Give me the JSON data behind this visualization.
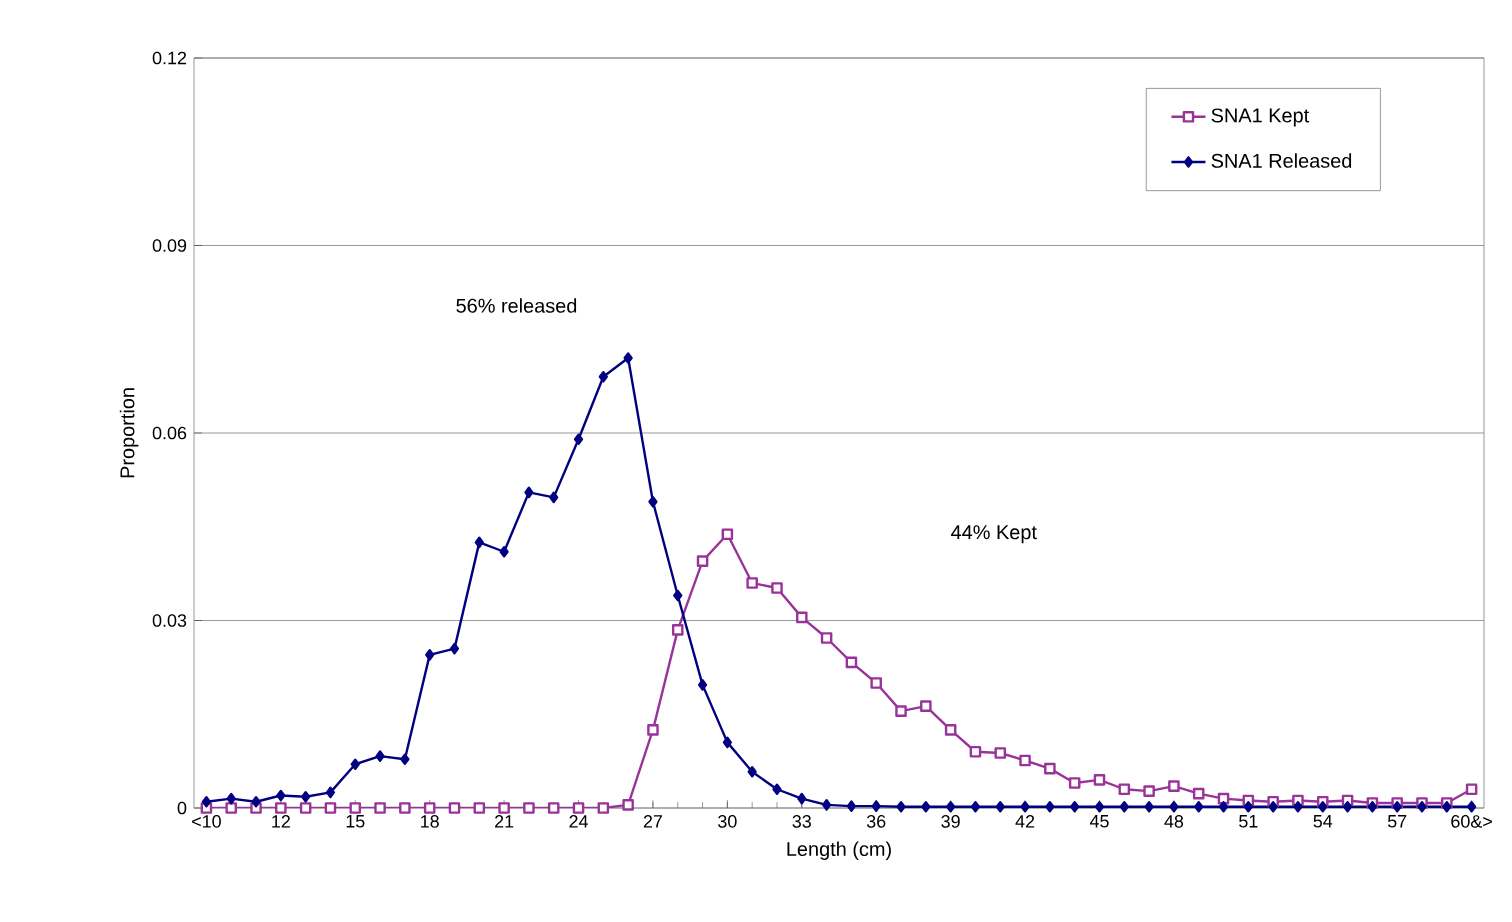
{
  "chart_data": {
    "type": "line",
    "xlabel": "Length (cm)",
    "ylabel": "Proportion",
    "categories": [
      "<10",
      null,
      null,
      "12",
      null,
      null,
      "15",
      null,
      null,
      "18",
      null,
      null,
      "21",
      null,
      null,
      "24",
      null,
      null,
      "27",
      null,
      null,
      "30",
      null,
      null,
      "33",
      null,
      null,
      "36",
      null,
      null,
      "39",
      null,
      null,
      "42",
      null,
      null,
      "45",
      null,
      null,
      "48",
      null,
      null,
      "51",
      null,
      null,
      "54",
      null,
      null,
      "57",
      null,
      null,
      "60&>"
    ],
    "series": [
      {
        "name": "SNA1 Kept",
        "color": "#993399",
        "marker": "square",
        "values": [
          0,
          0,
          0,
          0,
          0,
          0,
          0,
          0,
          0,
          0,
          0,
          0,
          0,
          0,
          0,
          0,
          0,
          0.0005,
          0.0125,
          0.0285,
          0.0395,
          0.0438,
          0.036,
          0.0352,
          0.0305,
          0.0272,
          0.0233,
          0.02,
          0.0155,
          0.0163,
          0.0125,
          0.009,
          0.0088,
          0.0076,
          0.0063,
          0.004,
          0.0045,
          0.003,
          0.0027,
          0.0035,
          0.0023,
          0.0015,
          0.0012,
          0.001,
          0.0012,
          0.001,
          0.0012,
          0.0008,
          0.0008,
          0.0008,
          0.0008,
          0.003
        ]
      },
      {
        "name": "SNA1 Released",
        "color": "#000080",
        "marker": "diamond",
        "values": [
          0.001,
          0.0015,
          0.001,
          0.002,
          0.0018,
          0.0025,
          0.007,
          0.0083,
          0.0078,
          0.0245,
          0.0255,
          0.0425,
          0.041,
          0.0505,
          0.0497,
          0.059,
          0.069,
          0.072,
          0.049,
          0.034,
          0.0197,
          0.0105,
          0.0058,
          0.003,
          0.0015,
          0.0005,
          0.0003,
          0.0003,
          0.0002,
          0.0002,
          0.0002,
          0.0002,
          0.0002,
          0.0002,
          0.0002,
          0.0002,
          0.0002,
          0.0002,
          0.0002,
          0.0002,
          0.0002,
          0.0002,
          0.0002,
          0.0002,
          0.0002,
          0.0002,
          0.0002,
          0.0002,
          0.0002,
          0.0002,
          0.0002,
          0.0002
        ]
      }
    ],
    "ylim": [
      0,
      0.12
    ],
    "yticks": [
      {
        "value": 0,
        "label": "0"
      },
      0.03,
      0.06,
      0.09,
      0.12
    ],
    "grid": "y",
    "legend": "top right",
    "line_style": "solid",
    "annotations": [
      "56% released",
      "44% Kept"
    ]
  }
}
